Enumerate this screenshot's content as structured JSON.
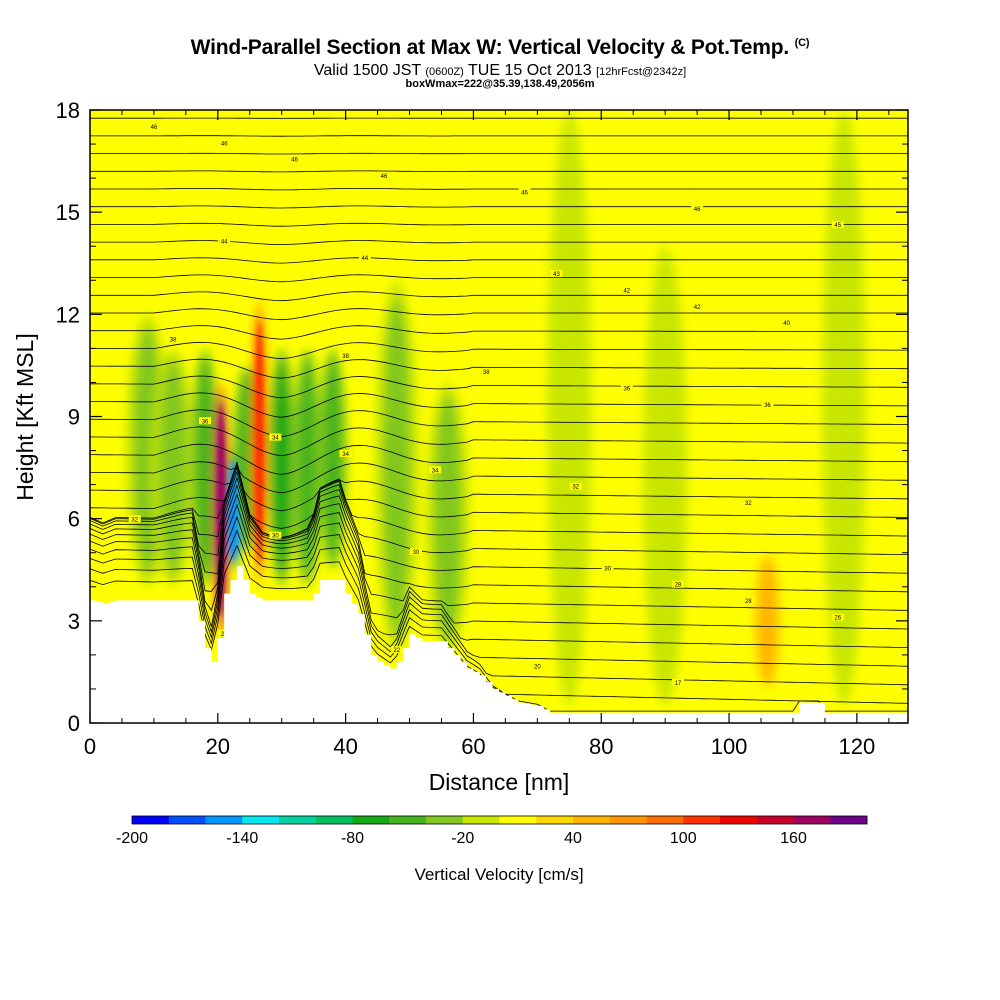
{
  "header": {
    "title": "Wind-Parallel Section at Max W: Vertical Velocity & Pot.Temp.",
    "copyright": "(C)",
    "subtitle_a": "Valid 1500 JST",
    "subtitle_b": "(0600Z)",
    "subtitle_c": "TUE 15 Oct 2013",
    "subtitle_d": "[12hrFcst@2342z]",
    "subtitle_e": "boxWmax=222@35.39,138.49,2056m"
  },
  "chart_data": {
    "type": "heatmap",
    "xlabel": "Distance [nm]",
    "ylabel": "Height [Kft MSL]",
    "xlim": [
      0,
      128
    ],
    "ylim": [
      0,
      18
    ],
    "x_ticks": [
      0,
      20,
      40,
      60,
      80,
      100,
      120
    ],
    "y_ticks": [
      0,
      3,
      6,
      9,
      12,
      15,
      18
    ],
    "colorbar": {
      "title": "Vertical Velocity [cm/s]",
      "min": -200,
      "max": 200,
      "step": 20,
      "tick_values": [
        -200,
        -140,
        -80,
        -20,
        40,
        100,
        160
      ],
      "tick_labels": [
        "-200",
        "-140",
        "-80",
        "-20",
        "40",
        "100",
        "160"
      ],
      "colors": [
        "#0000ff",
        "#0050ff",
        "#0096ff",
        "#00e8f0",
        "#00d2a0",
        "#00c060",
        "#14a814",
        "#46b41e",
        "#82c81e",
        "#c8e600",
        "#ffff00",
        "#ffd700",
        "#ffb400",
        "#ff9600",
        "#ff6e00",
        "#ff3200",
        "#f00000",
        "#c80028",
        "#a00064",
        "#6e008c"
      ]
    },
    "terrain_profile": [
      [
        0,
        3.6
      ],
      [
        2,
        3.5
      ],
      [
        4,
        3.6
      ],
      [
        14,
        3.6
      ],
      [
        16,
        3.6
      ],
      [
        17,
        3.0
      ],
      [
        18,
        2.2
      ],
      [
        19,
        1.8
      ],
      [
        20,
        2.5
      ],
      [
        21,
        3.8
      ],
      [
        22,
        4.2
      ],
      [
        23,
        4.6
      ],
      [
        24,
        4.2
      ],
      [
        25,
        3.8
      ],
      [
        27,
        3.6
      ],
      [
        34,
        3.6
      ],
      [
        35,
        3.8
      ],
      [
        36,
        4.2
      ],
      [
        39,
        4.2
      ],
      [
        40,
        3.8
      ],
      [
        41,
        3.5
      ],
      [
        42,
        3.2
      ],
      [
        43,
        2.6
      ],
      [
        44,
        2.0
      ],
      [
        45,
        1.8
      ],
      [
        47,
        1.6
      ],
      [
        48,
        1.8
      ],
      [
        49,
        2.2
      ],
      [
        50,
        2.6
      ],
      [
        52,
        2.4
      ],
      [
        55,
        2.4
      ],
      [
        57,
        2.0
      ],
      [
        59,
        1.6
      ],
      [
        61,
        1.4
      ],
      [
        63,
        1.0
      ],
      [
        65,
        0.8
      ],
      [
        67,
        0.6
      ],
      [
        70,
        0.5
      ],
      [
        72,
        0.3
      ],
      [
        110,
        0.3
      ],
      [
        111,
        0.6
      ],
      [
        114,
        0.6
      ],
      [
        115,
        0.3
      ],
      [
        128,
        0.3
      ]
    ],
    "vertical_velocity_features": [
      {
        "x": 9,
        "z0": 4,
        "z1": 12,
        "w": -35
      },
      {
        "x": 13,
        "z0": 4,
        "z1": 11,
        "w": -30
      },
      {
        "x": 18,
        "z0": 4,
        "z1": 11,
        "w": -60
      },
      {
        "x": 20.5,
        "z0": 2.5,
        "z1": 10,
        "w": 160
      },
      {
        "x": 22.5,
        "z0": 4.5,
        "z1": 8,
        "w": -150
      },
      {
        "x": 24.5,
        "z0": 5,
        "z1": 10.5,
        "w": -60
      },
      {
        "x": 26.5,
        "z0": 4,
        "z1": 12.5,
        "w": 100
      },
      {
        "x": 30,
        "z0": 4,
        "z1": 11,
        "w": -80
      },
      {
        "x": 34,
        "z0": 4,
        "z1": 11,
        "w": -60
      },
      {
        "x": 38,
        "z0": 4.5,
        "z1": 11,
        "w": -50
      },
      {
        "x": 48,
        "z0": 2,
        "z1": 13,
        "w": -40
      },
      {
        "x": 56,
        "z0": 2,
        "z1": 10,
        "w": -25
      },
      {
        "x": 75,
        "z0": 0.5,
        "z1": 18,
        "w": -10
      },
      {
        "x": 90,
        "z0": 0.5,
        "z1": 14,
        "w": -10
      },
      {
        "x": 106,
        "z0": 1,
        "z1": 5,
        "w": 50
      },
      {
        "x": 118,
        "z0": 0.5,
        "z1": 18,
        "w": -15
      }
    ],
    "theta_contour_labels": [
      "46",
      "46",
      "46",
      "46",
      "46",
      "46",
      "45",
      "44",
      "44",
      "43",
      "42",
      "42",
      "40",
      "38",
      "38",
      "38",
      "36",
      "36",
      "36",
      "34",
      "34",
      "34",
      "32",
      "32",
      "32",
      "30",
      "30",
      "30",
      "28",
      "28",
      "26",
      "24",
      "22",
      "20",
      "17"
    ]
  }
}
